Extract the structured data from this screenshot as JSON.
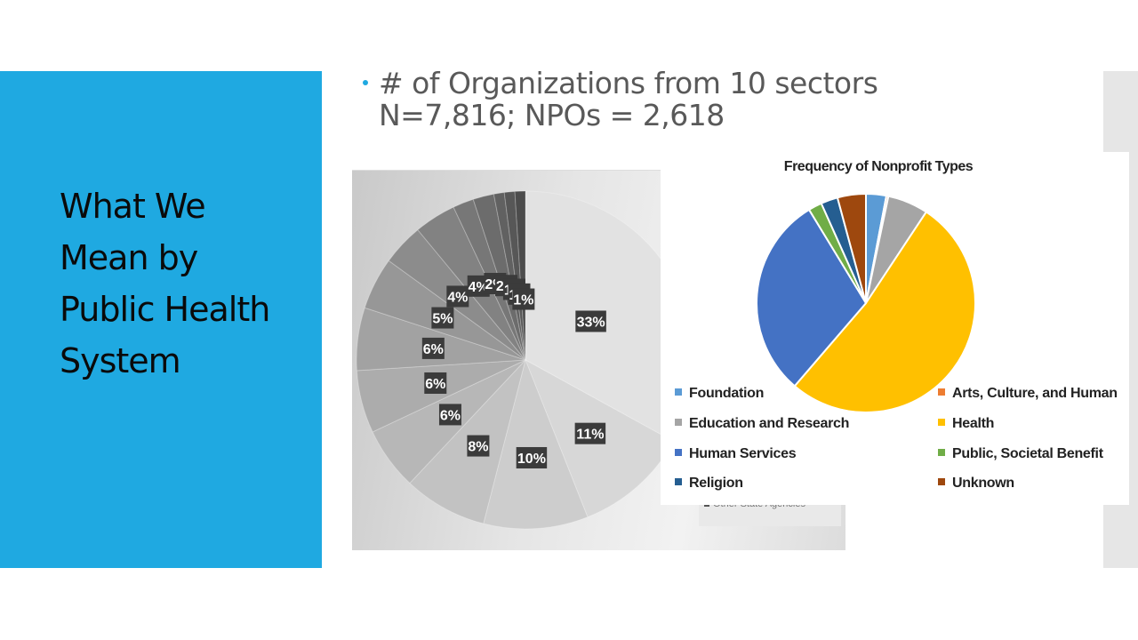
{
  "slide": {
    "title": "What We Mean by Public Health System",
    "title_lines": [
      "What We",
      "Mean by",
      "Public Health",
      "System"
    ],
    "bullet_lines": [
      "# of Organizations from 10 sectors",
      "N=7,816;  NPOs = 2,618"
    ],
    "accent_color": "#1fa9e1"
  },
  "chart_data": [
    {
      "type": "pie",
      "title": "",
      "start_angle": "12 o'clock, clockwise",
      "labels_visible": [
        "33%",
        "11%",
        "10%",
        "8%",
        "6%",
        "6%",
        "6%",
        "5%",
        "4%",
        "4%",
        "2%",
        "2%",
        "1%",
        "1%",
        "1%"
      ],
      "values": [
        33,
        11,
        10,
        8,
        6,
        6,
        6,
        5,
        4,
        4,
        2,
        2,
        1,
        1,
        1
      ],
      "legend_partial": [
        "Other State Agencies"
      ],
      "colors": "grayscale, light to dark"
    },
    {
      "type": "pie",
      "title": "Frequency of Nonprofit Types",
      "start_angle": "12 o'clock, clockwise",
      "categories": [
        "Foundation",
        "Arts, Culture, and Human",
        "Education and Research",
        "Health",
        "Human Services",
        "Public, Societal Benefit",
        "Religion",
        "Unknown"
      ],
      "values": [
        3,
        0.3,
        6,
        52,
        30,
        2,
        2.5,
        4.2
      ],
      "colors": [
        "#5b9bd5",
        "#ed7d31",
        "#a5a5a5",
        "#ffc000",
        "#4472c4",
        "#70ad47",
        "#255e91",
        "#9e480e"
      ],
      "legend_position": "bottom, two columns"
    }
  ],
  "chart1": {
    "legend_text": "Other State Agencies"
  },
  "chart2": {
    "title": "Frequency of Nonprofit Types",
    "legend": [
      {
        "label": "Foundation",
        "color": "#5b9bd5"
      },
      {
        "label": "Arts, Culture, and Human",
        "color": "#ed7d31"
      },
      {
        "label": "Education and Research",
        "color": "#a5a5a5"
      },
      {
        "label": "Health",
        "color": "#ffc000"
      },
      {
        "label": "Human Services",
        "color": "#4472c4"
      },
      {
        "label": "Public, Societal Benefit",
        "color": "#70ad47"
      },
      {
        "label": "Religion",
        "color": "#255e91"
      },
      {
        "label": "Unknown",
        "color": "#9e480e"
      }
    ]
  }
}
